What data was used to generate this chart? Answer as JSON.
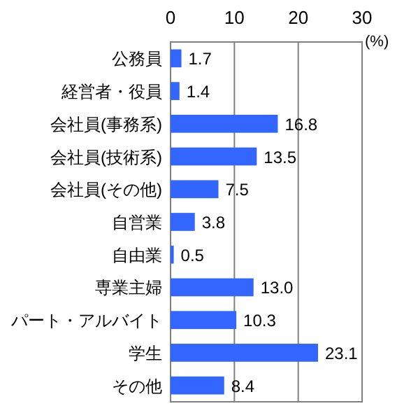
{
  "chart_data": {
    "type": "bar",
    "orientation": "horizontal",
    "xlabel": "(%)",
    "categories": [
      "公務員",
      "経営者・役員",
      "会社員(事務系)",
      "会社員(技術系)",
      "会社員(その他)",
      "自営業",
      "自由業",
      "専業主婦",
      "パート・アルバイト",
      "学生",
      "その他"
    ],
    "values": [
      1.7,
      1.4,
      16.8,
      13.5,
      7.5,
      3.8,
      0.5,
      13.0,
      10.3,
      23.1,
      8.4
    ],
    "value_labels": [
      "1.7",
      "1.4",
      "16.8",
      "13.5",
      "7.5",
      "3.8",
      "0.5",
      "13.0",
      "10.3",
      "23.1",
      "8.4"
    ],
    "color": "#3366ff",
    "xlim": [
      0,
      30
    ],
    "xticks": [
      0,
      10,
      20,
      30
    ],
    "grid": "x"
  }
}
